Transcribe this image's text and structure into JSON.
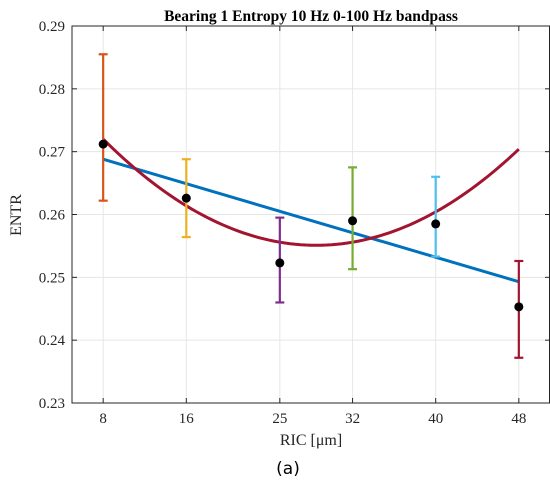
{
  "chart_data": {
    "type": "scatter",
    "title": "Bearing 1 Entropy 10 Hz 0-100 Hz bandpass",
    "xlabel": "RIC [μm]",
    "ylabel": "ENTR",
    "caption": "(a)",
    "x_categories": [
      "8",
      "16",
      "25",
      "32",
      "40",
      "48"
    ],
    "ylim": [
      0.23,
      0.29
    ],
    "yticks": [
      "0.23",
      "0.24",
      "0.25",
      "0.26",
      "0.27",
      "0.28",
      "0.29"
    ],
    "grid": true,
    "points": [
      {
        "x": "8",
        "mean": 0.2712,
        "lower": 0.2622,
        "upper": 0.2855,
        "color": "#D95319"
      },
      {
        "x": "16",
        "mean": 0.2626,
        "lower": 0.2564,
        "upper": 0.2688,
        "color": "#EDB120"
      },
      {
        "x": "25",
        "mean": 0.2523,
        "lower": 0.246,
        "upper": 0.2595,
        "color": "#7E2F8E"
      },
      {
        "x": "32",
        "mean": 0.259,
        "lower": 0.2513,
        "upper": 0.2675,
        "color": "#77AC30"
      },
      {
        "x": "40",
        "mean": 0.2585,
        "lower": 0.2533,
        "upper": 0.266,
        "color": "#4DBEEE"
      },
      {
        "x": "48",
        "mean": 0.2453,
        "lower": 0.2372,
        "upper": 0.2526,
        "color": "#A2142F"
      }
    ],
    "fits": [
      {
        "kind": "linear",
        "color": "#0072BD",
        "start": 0.2688,
        "end": 0.2493
      },
      {
        "kind": "quadratic",
        "color": "#A2142F",
        "start": 0.272,
        "min_x": 28.5,
        "min_y": 0.2551,
        "end": 0.2686
      }
    ]
  }
}
